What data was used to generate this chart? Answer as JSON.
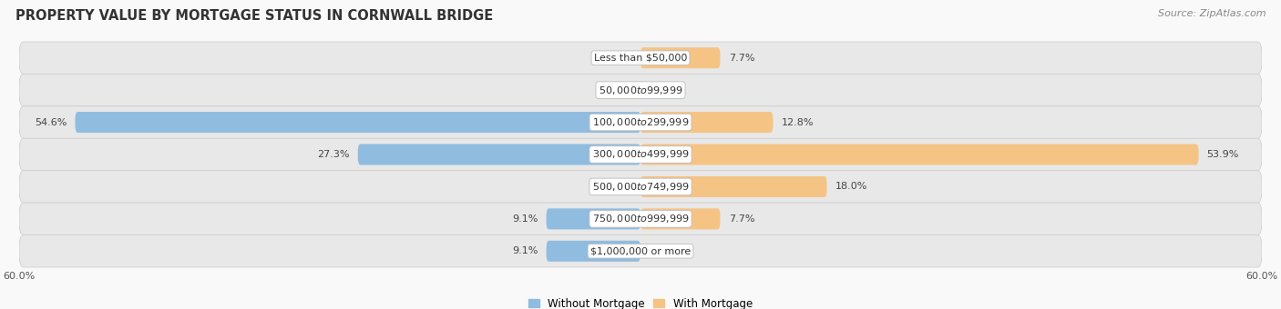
{
  "title": "PROPERTY VALUE BY MORTGAGE STATUS IN CORNWALL BRIDGE",
  "source": "Source: ZipAtlas.com",
  "categories": [
    "Less than $50,000",
    "$50,000 to $99,999",
    "$100,000 to $299,999",
    "$300,000 to $499,999",
    "$500,000 to $749,999",
    "$750,000 to $999,999",
    "$1,000,000 or more"
  ],
  "without_mortgage": [
    0.0,
    0.0,
    54.6,
    27.3,
    0.0,
    9.1,
    9.1
  ],
  "with_mortgage": [
    7.7,
    0.0,
    12.8,
    53.9,
    18.0,
    7.7,
    0.0
  ],
  "xlim": 60.0,
  "bar_color_left": "#90bce0",
  "bar_color_right": "#f5c485",
  "bar_row_bg": "#e8e8e8",
  "bar_row_bg2": "#f0f0f0",
  "background_color": "#f9f9f9",
  "title_fontsize": 10.5,
  "source_fontsize": 8,
  "label_fontsize": 8,
  "category_fontsize": 8,
  "legend_fontsize": 8.5,
  "axis_label_fontsize": 8
}
